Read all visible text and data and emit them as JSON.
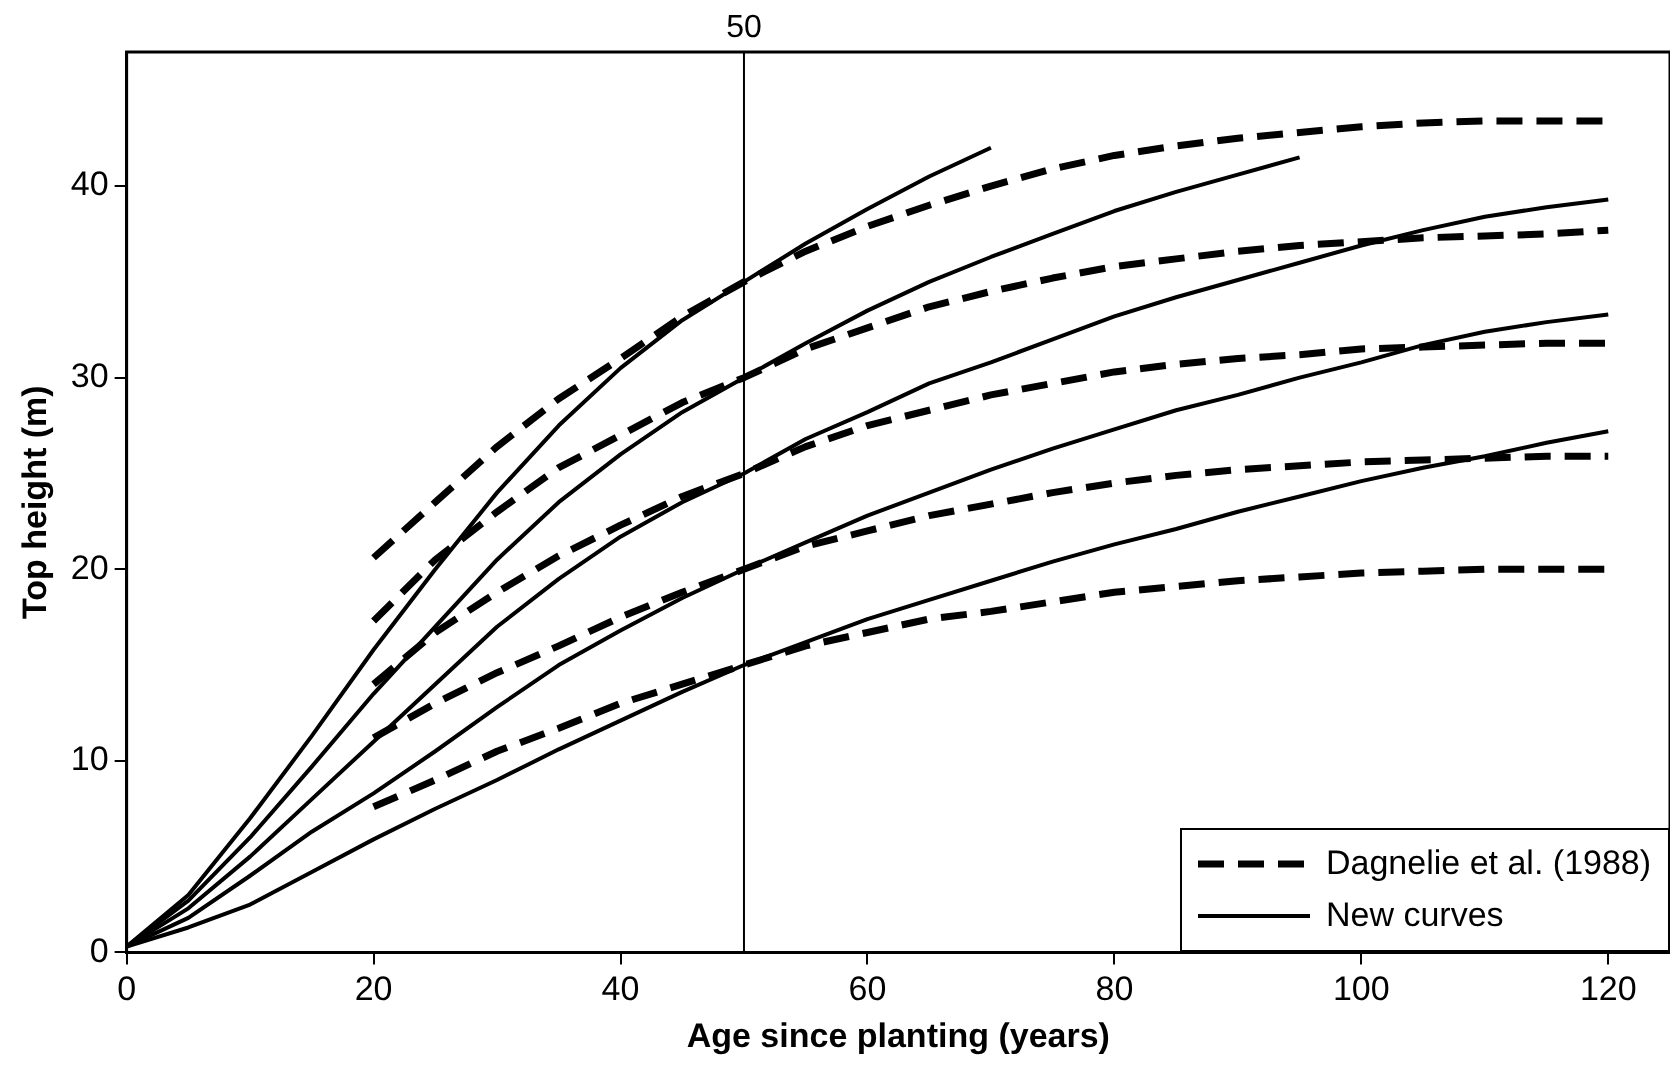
{
  "chart_data": {
    "type": "line",
    "xlabel": "Age since planting (years)",
    "ylabel": "Top height (m)",
    "xlim": [
      0,
      125
    ],
    "ylim": [
      0,
      47
    ],
    "xticks": [
      0,
      20,
      40,
      60,
      80,
      100,
      120
    ],
    "yticks": [
      0,
      10,
      20,
      30,
      40
    ],
    "grid": false,
    "legend": "bottom right",
    "marker": "none",
    "ref_lines": [
      {
        "axis": "x",
        "value": 50,
        "label": "50",
        "color": "#000000"
      }
    ],
    "series": [
      {
        "name": "Dagnelie et al. (1988)",
        "color": "#000000",
        "line_style": "dashed",
        "x": [
          20,
          25,
          30,
          35,
          40,
          45,
          50,
          55,
          60,
          65,
          70,
          75,
          80,
          85,
          90,
          95,
          100,
          105,
          110,
          115,
          120
        ],
        "values": [
          20.6,
          23.5,
          26.4,
          28.9,
          31,
          33.2,
          35,
          36.6,
          37.9,
          39,
          40,
          40.9,
          41.6,
          42.1,
          42.5,
          42.8,
          43.1,
          43.3,
          43.4,
          43.4,
          43.4
        ]
      },
      {
        "color": "#000000",
        "line_style": "dashed",
        "x": [
          20,
          25,
          30,
          35,
          40,
          45,
          50,
          55,
          60,
          65,
          70,
          75,
          80,
          85,
          90,
          95,
          100,
          105,
          110,
          115,
          120
        ],
        "values": [
          17.3,
          20.5,
          23,
          25.3,
          27,
          28.7,
          30,
          31.5,
          32.6,
          33.7,
          34.5,
          35.2,
          35.8,
          36.2,
          36.6,
          36.9,
          37.1,
          37.3,
          37.4,
          37.5,
          37.7
        ]
      },
      {
        "color": "#000000",
        "line_style": "dashed",
        "x": [
          20,
          25,
          30,
          35,
          40,
          45,
          50,
          55,
          60,
          65,
          70,
          75,
          80,
          85,
          90,
          95,
          100,
          105,
          110,
          115,
          120
        ],
        "values": [
          14,
          16.7,
          18.8,
          20.7,
          22.3,
          23.8,
          25,
          26.4,
          27.5,
          28.3,
          29.1,
          29.7,
          30.3,
          30.7,
          31,
          31.2,
          31.5,
          31.6,
          31.7,
          31.8,
          31.8
        ]
      },
      {
        "color": "#000000",
        "line_style": "dashed",
        "x": [
          20,
          25,
          30,
          35,
          40,
          45,
          50,
          55,
          60,
          65,
          70,
          75,
          80,
          85,
          90,
          95,
          100,
          105,
          110,
          115,
          120
        ],
        "values": [
          11.2,
          13,
          14.6,
          16,
          17.5,
          18.8,
          20,
          21.2,
          22,
          22.8,
          23.4,
          24,
          24.5,
          24.9,
          25.2,
          25.4,
          25.6,
          25.7,
          25.8,
          25.9,
          25.9
        ]
      },
      {
        "color": "#000000",
        "line_style": "dashed",
        "x": [
          20,
          25,
          30,
          35,
          40,
          45,
          50,
          55,
          60,
          65,
          70,
          75,
          80,
          85,
          90,
          95,
          100,
          105,
          110,
          115,
          120
        ],
        "values": [
          7.6,
          9,
          10.5,
          11.7,
          13,
          14,
          15,
          16,
          16.7,
          17.4,
          17.8,
          18.3,
          18.8,
          19.1,
          19.4,
          19.6,
          19.8,
          19.9,
          20,
          20,
          20
        ]
      },
      {
        "name": "New curves",
        "color": "#000000",
        "line_style": "solid",
        "x": [
          0,
          5,
          10,
          15,
          20,
          25,
          30,
          35,
          40,
          45,
          50,
          55,
          60,
          65,
          70
        ],
        "values": [
          0.3,
          3,
          7,
          11.3,
          15.8,
          20,
          24,
          27.5,
          30.5,
          33,
          35,
          37,
          38.8,
          40.5,
          42
        ]
      },
      {
        "color": "#000000",
        "line_style": "solid",
        "x": [
          0,
          5,
          10,
          15,
          20,
          25,
          30,
          35,
          40,
          45,
          50,
          55,
          60,
          65,
          70,
          75,
          80,
          85,
          90,
          95
        ],
        "values": [
          0.3,
          2.7,
          6,
          9.7,
          13.5,
          17,
          20.5,
          23.5,
          26,
          28.2,
          30,
          31.8,
          33.5,
          35,
          36.3,
          37.5,
          38.7,
          39.7,
          40.6,
          41.5
        ]
      },
      {
        "color": "#000000",
        "line_style": "solid",
        "x": [
          0,
          5,
          10,
          15,
          20,
          25,
          30,
          35,
          40,
          45,
          50,
          55,
          60,
          65,
          70,
          75,
          80,
          85,
          90,
          95,
          100,
          105,
          110,
          115,
          120
        ],
        "values": [
          0.3,
          2.3,
          5,
          8,
          11,
          14,
          17,
          19.5,
          21.7,
          23.5,
          25,
          26.8,
          28.2,
          29.7,
          30.8,
          32,
          33.2,
          34.2,
          35.1,
          36,
          36.9,
          37.7,
          38.4,
          38.9,
          39.3
        ]
      },
      {
        "color": "#000000",
        "line_style": "solid",
        "x": [
          0,
          5,
          10,
          15,
          20,
          25,
          30,
          35,
          40,
          45,
          50,
          55,
          60,
          65,
          70,
          75,
          80,
          85,
          90,
          95,
          100,
          105,
          110,
          115,
          120
        ],
        "values": [
          0.3,
          1.8,
          4,
          6.3,
          8.3,
          10.5,
          12.8,
          15,
          16.8,
          18.5,
          20,
          21.4,
          22.8,
          24,
          25.2,
          26.3,
          27.3,
          28.3,
          29.1,
          30,
          30.8,
          31.7,
          32.4,
          32.9,
          33.3
        ]
      },
      {
        "color": "#000000",
        "line_style": "solid",
        "x": [
          0,
          5,
          10,
          15,
          20,
          25,
          30,
          35,
          40,
          45,
          50,
          55,
          60,
          65,
          70,
          75,
          80,
          85,
          90,
          95,
          100,
          105,
          110,
          115,
          120
        ],
        "values": [
          0.3,
          1.3,
          2.5,
          4.2,
          5.9,
          7.5,
          9,
          10.6,
          12.1,
          13.6,
          15,
          16.2,
          17.4,
          18.4,
          19.4,
          20.4,
          21.3,
          22.1,
          23,
          23.8,
          24.6,
          25.3,
          25.9,
          26.6,
          27.2
        ]
      }
    ]
  }
}
